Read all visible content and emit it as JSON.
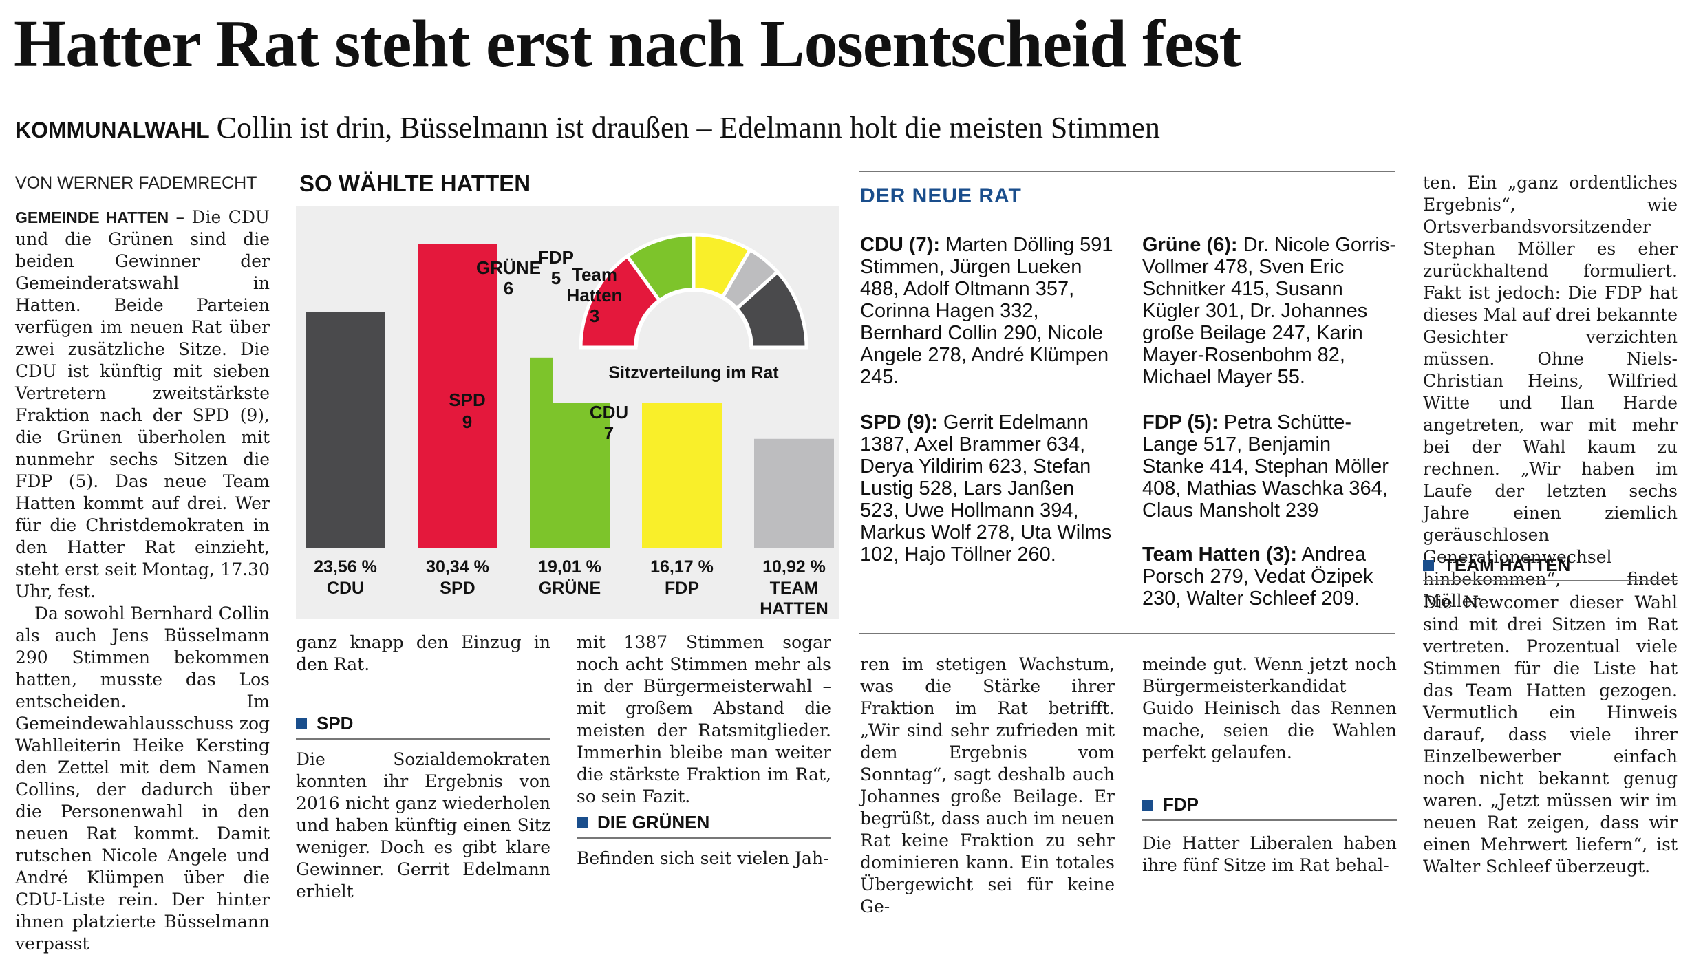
{
  "headline": "Hatter Rat steht erst nach Losentscheid fest",
  "kicker": "KOMMUNALWAHL",
  "subheadline": "Collin ist drin, Büsselmann ist draußen – Edelmann holt die meisten Stimmen",
  "byline": "VON WERNER FADEMRECHT",
  "column1": {
    "lead": "GEMEINDE HATTEN",
    "p1": " – Die CDU und die Grünen sind die beiden Gewinner der Gemeinderatswahl in Hatten. Beide Parteien verfügen im neuen Rat über zwei zusätzliche Sitze. Die CDU ist künftig mit sieben Vertretern zweitstärkste Fraktion nach der SPD (9), die Grünen überholen mit nunmehr sechs Sitzen die FDP (5). Das neue Team Hatten kommt auf drei. Wer für die Christdemokraten in den Hatter Rat einzieht, steht erst seit Montag, 17.30 Uhr, fest.",
    "p2": "Da sowohl Bernhard Collin als auch Jens Büsselmann 290 Stimmen bekommen hatten, musste das Los entscheiden. Im Gemeindewahlausschuss zog Wahlleiterin Heike Kersting den Zettel mit dem Namen Collins, der dadurch über die Personenwahl in den neuen Rat kommt. Damit rutschen Nicole Angele und André Klümpen über die CDU-Liste rein. Der hinter ihnen platzierte Büsselmann verpasst"
  },
  "column2": {
    "p1": "ganz knapp den Einzug in den Rat.",
    "section": "SPD",
    "p2": "Die Sozialdemokraten konnten ihr Ergebnis von 2016 nicht ganz wiederholen und haben künftig einen Sitz weniger. Doch es gibt klare Gewinner. Gerrit Edelmann erhielt"
  },
  "column3": {
    "p1": "mit 1387 Stimmen sogar noch acht Stimmen mehr als in der Bürgermeisterwahl – mit großem Abstand die meisten der Ratsmitglieder. Immerhin bleibe man weiter die stärkste Fraktion im Rat, so sein Fazit.",
    "section": "DIE GRÜNEN",
    "p2": "Befinden sich seit vielen Jah-"
  },
  "column4": {
    "p1": "ren im stetigen Wachstum, was die Stärke ihrer Fraktion im Rat betrifft. „Wir sind sehr zufrieden mit dem Ergebnis vom Sonntag“, sagt deshalb auch Johannes große Beilage. Er begrüßt, dass auch im neuen Rat keine Fraktion zu sehr dominieren kann. Ein totales Übergewicht sei für keine Ge-"
  },
  "column5": {
    "p1": "meinde gut. Wenn jetzt noch Bürgermeisterkandidat Guido Heinisch das Rennen mache, seien die Wahlen perfekt gelaufen.",
    "section": "FDP",
    "p2": "Die Hatter Liberalen haben ihre fünf Sitze im Rat behal-"
  },
  "column6": {
    "p1": "ten. Ein „ganz ordentliches Ergebnis“, wie Ortsverbandsvorsitzender Stephan Möller es eher zurückhaltend formuliert. Fakt ist jedoch: Die FDP hat dieses Mal auf drei bekannte Gesichter verzichten müssen. Ohne Niels-Christian Heins, Wilfried Witte und Ilan Harde angetreten, war mit mehr bei der Wahl kaum zu rechnen. „Wir haben im Laufe der letzten sechs Jahre einen ziemlich geräuschlosen Generationenwechsel hinbekommen“, findet Möller.",
    "section": "TEAM HATTEN",
    "p2": "Die Newcomer dieser Wahl sind mit drei Sitzen im Rat vertreten. Prozentual viele Stimmen für die Liste hat das Team Hatten gezogen. Vermutlich ein Hinweis darauf, dass viele ihrer Einzelbewerber einfach noch nicht bekannt genug waren. „Jetzt müssen wir im neuen Rat zeigen, dass wir einen Mehrwert liefern“, ist Walter Schleef überzeugt."
  },
  "rat": {
    "title": "DER NEUE RAT",
    "cdu_label": "CDU (7):",
    "cdu_text": " Marten Dölling 591 Stimmen, Jürgen Lueken 488, Adolf Oltmann 357, Corinna Hagen 332, Bernhard Collin 290, Nicole Angele 278, André Klümpen 245.",
    "spd_label": "SPD (9):",
    "spd_text": " Gerrit Edelmann 1387, Axel Brammer 634, Derya Yildirim 623, Stefan Lustig 528, Lars Janßen 523, Uwe Hollmann 394, Markus Wolf 278, Uta Wilms 102, Hajo Töllner 260.",
    "gruene_label": "Grüne (6):",
    "gruene_text": " Dr. Nicole Gorris-Vollmer 478, Sven Eric Schnitker 415, Susann Kügler 301, Dr. Johannes große Beilage 247, Karin Mayer-Rosenbohm 82, Michael Mayer 55.",
    "fdp_label": "FDP (5):",
    "fdp_text": " Petra Schütte-Lange 517, Benjamin Stanke 414, Stephan Möller 408, Mathias Waschka 364, Claus Mansholt 239",
    "team_label": "Team Hatten (3):",
    "team_text": " Andrea Porsch 279, Vedat Özipek 230, Walter Schleef 209."
  },
  "chart_data": [
    {
      "type": "bar",
      "title": "SO WÄHLTE HATTEN",
      "categories": [
        "CDU",
        "SPD",
        "GRÜNE",
        "FDP",
        "TEAM HATTEN"
      ],
      "values": [
        23.56,
        30.34,
        19.01,
        16.17,
        10.92
      ],
      "value_labels": [
        "23,56 %",
        "30,34 %",
        "19,01 %",
        "16,17 %",
        "10,92 %"
      ],
      "colors": [
        "#4a4a4c",
        "#e4183c",
        "#7dc42b",
        "#f9ef2a",
        "#bdbdbf"
      ],
      "ylim": [
        0,
        31
      ],
      "grid": false
    },
    {
      "type": "pie",
      "title": "Sitzverteilung im Rat",
      "categories": [
        "SPD",
        "GRÜNE",
        "FDP",
        "Team Hatten",
        "CDU"
      ],
      "values": [
        9,
        6,
        5,
        3,
        7
      ],
      "colors": [
        "#e4183c",
        "#7dc42b",
        "#f9ef2a",
        "#bdbdbf",
        "#4a4a4c"
      ]
    }
  ]
}
